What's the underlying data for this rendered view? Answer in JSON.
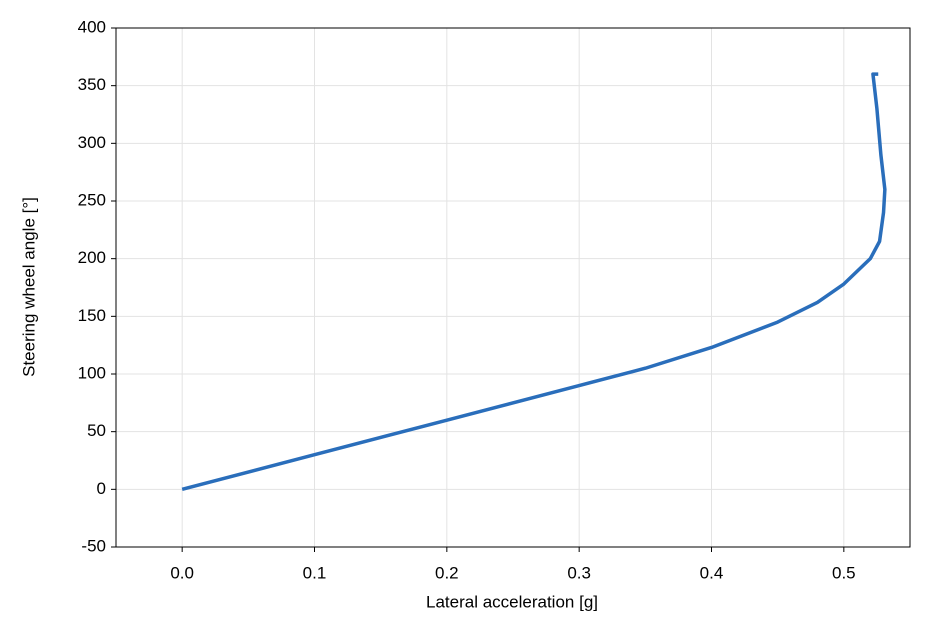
{
  "chart_data": {
    "type": "line",
    "x_label": "Lateral acceleration [g]",
    "y_label": "Steering wheel angle [°]",
    "x": [
      0,
      0.1,
      0.2,
      0.3,
      0.35,
      0.4,
      0.45,
      0.48,
      0.5,
      0.52,
      0.527,
      0.53,
      0.531,
      0.528,
      0.525,
      0.523,
      0.522,
      0.526
    ],
    "series": [
      {
        "color": "#2a6ebb",
        "values": [
          0,
          30,
          60,
          90,
          105,
          123,
          145,
          162,
          178,
          200,
          215,
          240,
          260,
          290,
          330,
          350,
          360,
          360
        ]
      }
    ],
    "xlim": [
      -0.05,
      0.55
    ],
    "xticks": [
      {
        "value": 0,
        "label": "0.0"
      },
      0.1,
      0.2,
      0.3,
      0.4,
      0.5
    ],
    "ylim": [
      -50,
      400
    ],
    "yticks": [
      -50,
      0,
      50,
      100,
      150,
      200,
      250,
      300,
      350,
      400
    ],
    "grid": true
  }
}
